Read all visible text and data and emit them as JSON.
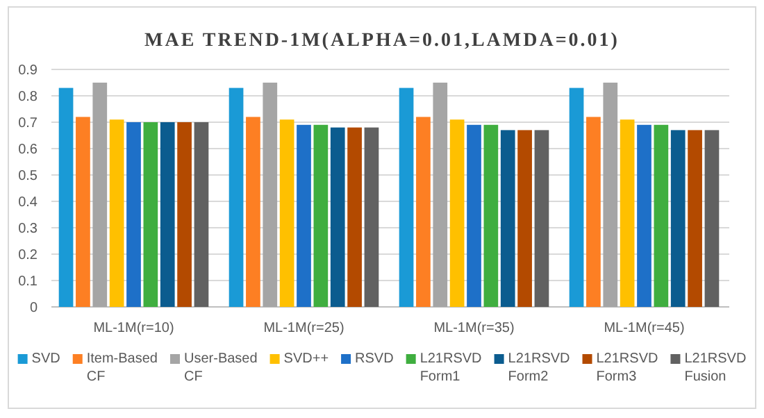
{
  "chart_data": {
    "type": "bar",
    "title": "MAE TREND-1M(ALPHA=0.01,LAMDA=0.01)",
    "categories": [
      "ML-1M(r=10)",
      "ML-1M(r=25)",
      "ML-1M(r=35)",
      "ML-1M(r=45)"
    ],
    "series": [
      {
        "name": "SVD",
        "color": "#1a9ad6",
        "values": [
          0.83,
          0.83,
          0.83,
          0.83
        ]
      },
      {
        "name": "Item-Based CF",
        "color": "#fd7f23",
        "values": [
          0.72,
          0.72,
          0.72,
          0.72
        ]
      },
      {
        "name": "User-Based CF",
        "color": "#a5a5a5",
        "values": [
          0.85,
          0.85,
          0.85,
          0.85
        ]
      },
      {
        "name": "SVD++",
        "color": "#ffc000",
        "values": [
          0.71,
          0.71,
          0.71,
          0.71
        ]
      },
      {
        "name": "RSVD",
        "color": "#1e70c8",
        "values": [
          0.7,
          0.69,
          0.69,
          0.69
        ]
      },
      {
        "name": "L21RSVD Form1",
        "color": "#3fae3f",
        "values": [
          0.7,
          0.69,
          0.69,
          0.69
        ]
      },
      {
        "name": "L21RSVD Form2",
        "color": "#0b5c8f",
        "values": [
          0.7,
          0.68,
          0.67,
          0.67
        ]
      },
      {
        "name": "L21RSVD Form3",
        "color": "#b34a00",
        "values": [
          0.7,
          0.68,
          0.67,
          0.67
        ]
      },
      {
        "name": "L21RSVD Fusion",
        "color": "#616161",
        "values": [
          0.7,
          0.68,
          0.67,
          0.67
        ]
      }
    ],
    "ylim": [
      0,
      0.9
    ],
    "yticks": [
      0,
      0.1,
      0.2,
      0.3,
      0.4,
      0.5,
      0.6,
      0.7,
      0.8,
      0.9
    ],
    "grid": "y",
    "legend": "bottom"
  }
}
